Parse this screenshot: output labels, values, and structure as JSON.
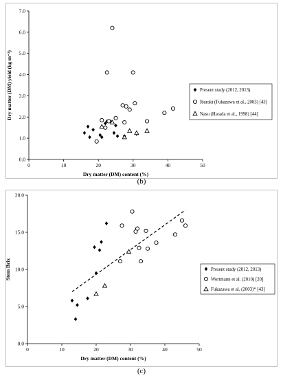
{
  "chart_data": [
    {
      "type": "scatter",
      "panel_label": "(b)",
      "xlabel": "Dry matter (DM) content (%)",
      "ylabel": "Dry matter (DM) yield (kg m⁻²)",
      "xlim": [
        0,
        50
      ],
      "ylim": [
        0,
        7
      ],
      "x_ticks": [
        "0",
        "10",
        "20",
        "30",
        "40",
        "50"
      ],
      "y_ticks": [
        "0.0",
        "1.0",
        "2.0",
        "3.0",
        "4.0",
        "5.0",
        "6.0",
        "7.0"
      ],
      "grid": false,
      "legend_position": "right",
      "series": [
        {
          "name": "Present study (2012, 2013)",
          "marker": "diamond",
          "points": [
            [
              16.0,
              1.25
            ],
            [
              17.0,
              1.55
            ],
            [
              17.5,
              1.05
            ],
            [
              18.5,
              1.4
            ],
            [
              20.5,
              1.15
            ],
            [
              21.0,
              1.05
            ],
            [
              22.0,
              1.7
            ],
            [
              22.5,
              1.8
            ],
            [
              23.5,
              1.8
            ],
            [
              24.5,
              1.25
            ],
            [
              25.0,
              1.6
            ],
            [
              25.5,
              1.1
            ],
            [
              27.5,
              1.1
            ],
            [
              31.0,
              1.2
            ]
          ]
        },
        {
          "name": "Ibaraki (Fukazawa et al., 2003) [43]",
          "marker": "circle",
          "points": [
            [
              19.5,
              0.85
            ],
            [
              21.0,
              1.85
            ],
            [
              22.0,
              1.5
            ],
            [
              22.5,
              4.1
            ],
            [
              23.0,
              1.8
            ],
            [
              24.0,
              6.2
            ],
            [
              25.0,
              1.95
            ],
            [
              27.0,
              2.55
            ],
            [
              27.5,
              1.75
            ],
            [
              28.0,
              2.5
            ],
            [
              29.0,
              2.35
            ],
            [
              30.0,
              4.1
            ],
            [
              30.5,
              2.65
            ],
            [
              34.0,
              1.8
            ],
            [
              39.0,
              2.2
            ],
            [
              41.5,
              2.4
            ]
          ]
        },
        {
          "name": "Nasu (Harada et al., 1998) [44]",
          "marker": "triangle",
          "points": [
            [
              21.0,
              1.55
            ],
            [
              24.0,
              1.75
            ],
            [
              27.5,
              1.05
            ],
            [
              29.0,
              1.35
            ],
            [
              31.0,
              1.25
            ],
            [
              34.0,
              1.35
            ]
          ]
        }
      ]
    },
    {
      "type": "scatter",
      "panel_label": "(c)",
      "xlabel": "Dry matter (DM) content (%)",
      "ylabel": "Stem Brix",
      "xlim": [
        0,
        50
      ],
      "ylim": [
        0,
        20
      ],
      "x_ticks": [
        "0",
        "10",
        "20",
        "30",
        "40",
        "50"
      ],
      "y_ticks": [
        "0.0",
        "5.0",
        "10.0",
        "15.0",
        "20.0"
      ],
      "grid": false,
      "legend_position": "right",
      "trendline": {
        "style": "dashed",
        "x": [
          13.0,
          46.0
        ],
        "y": [
          7.0,
          18.0
        ]
      },
      "series": [
        {
          "name": "Present study (2012, 2013)",
          "marker": "diamond",
          "points": [
            [
              13.0,
              5.8
            ],
            [
              14.0,
              3.3
            ],
            [
              14.5,
              5.2
            ],
            [
              17.5,
              6.1
            ],
            [
              19.5,
              13.0
            ],
            [
              20.0,
              9.5
            ],
            [
              21.0,
              12.6
            ],
            [
              21.5,
              13.7
            ],
            [
              23.0,
              16.2
            ]
          ]
        },
        {
          "name": "Wortmann et al. (2010) [20]",
          "marker": "circle",
          "points": [
            [
              27.0,
              11.1
            ],
            [
              27.5,
              15.9
            ],
            [
              30.5,
              17.8
            ],
            [
              31.5,
              15.1
            ],
            [
              32.0,
              15.5
            ],
            [
              32.5,
              12.9
            ],
            [
              33.0,
              11.1
            ],
            [
              34.5,
              15.2
            ],
            [
              35.0,
              12.8
            ],
            [
              37.5,
              13.6
            ],
            [
              43.0,
              14.7
            ],
            [
              45.0,
              16.6
            ],
            [
              46.0,
              15.9
            ]
          ]
        },
        {
          "name": "Fukazawa et al. (2003)* [43]",
          "marker": "triangle",
          "points": [
            [
              20.0,
              6.7
            ],
            [
              22.5,
              7.8
            ],
            [
              29.5,
              12.4
            ]
          ]
        }
      ]
    }
  ]
}
